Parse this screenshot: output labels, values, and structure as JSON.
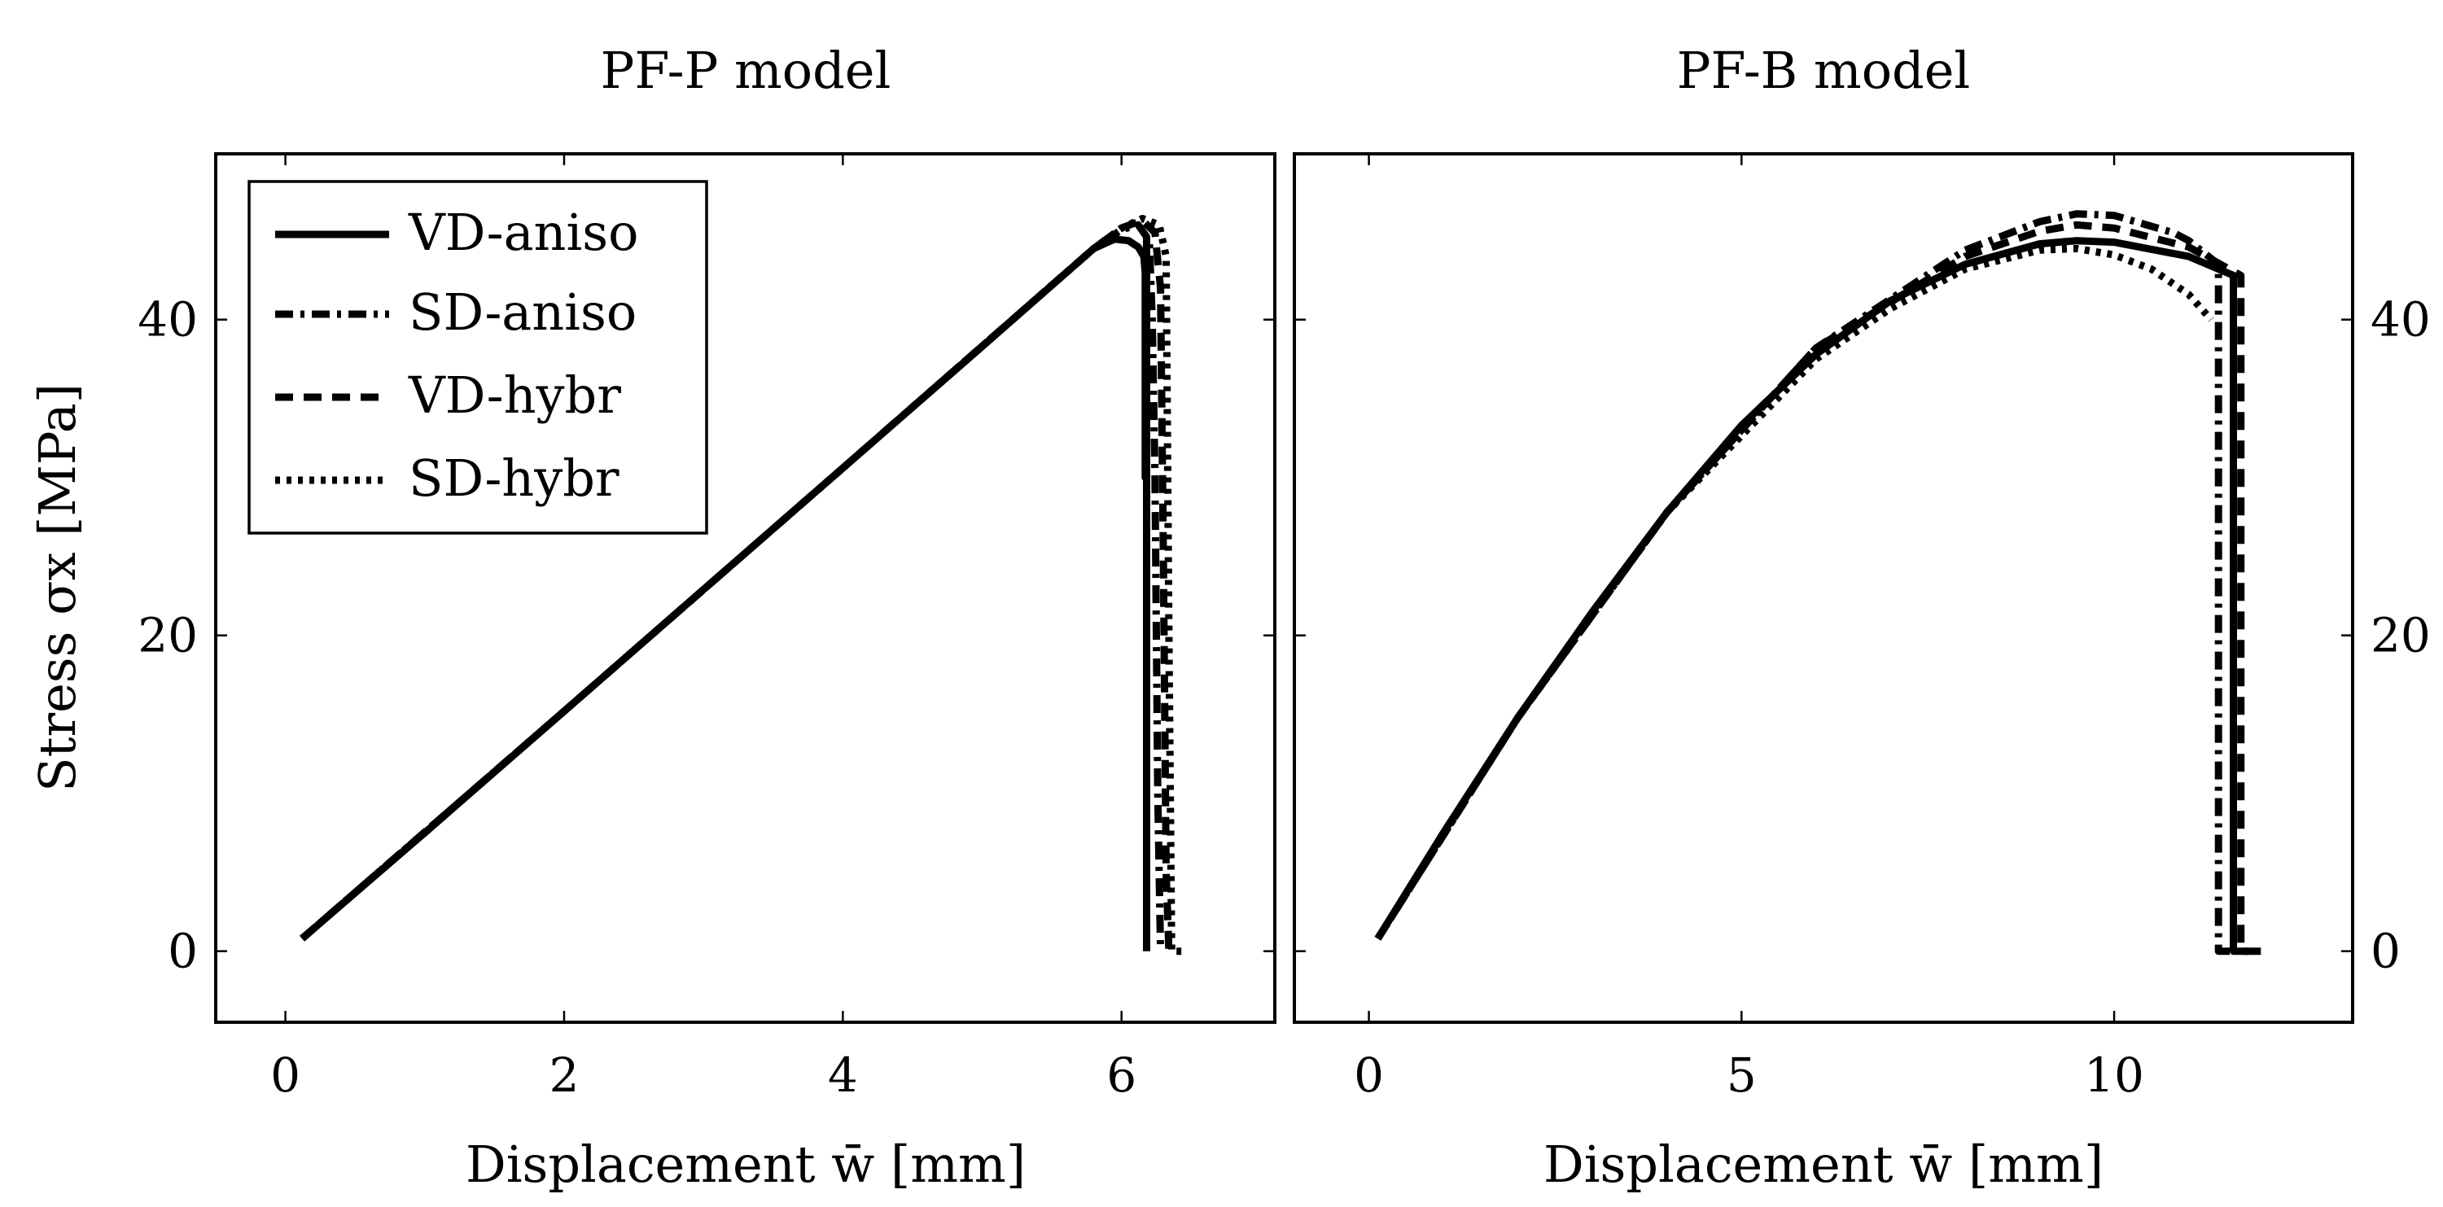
{
  "chart_data": [
    {
      "type": "line",
      "title": "PF-P model",
      "xlabel": "Displacement w̄ [mm]",
      "ylabel": "Stress σx [MPa]",
      "xlim": [
        -0.5,
        7.1
      ],
      "ylim": [
        -4.5,
        50.5
      ],
      "xticks": [
        0,
        2,
        4,
        6
      ],
      "yticks": [
        0,
        20,
        40
      ],
      "ytick_side": "left",
      "legend": {
        "placement": "top-left",
        "entries": [
          "VD-aniso",
          "SD-aniso",
          "VD-hybr",
          "SD-hybr"
        ]
      },
      "series": [
        {
          "name": "VD-aniso",
          "style": "solid",
          "x": [
            0.12,
            1.0,
            2.0,
            3.0,
            4.0,
            5.0,
            5.8,
            5.95,
            6.05,
            6.12,
            6.16,
            6.17,
            6.17,
            6.18,
            6.18
          ],
          "y": [
            0.8,
            7.5,
            15.2,
            22.9,
            30.6,
            38.3,
            44.5,
            45.1,
            45.0,
            44.6,
            44.0,
            43.0,
            30.0,
            45.2,
            0.0
          ]
        },
        {
          "name": "SD-aniso",
          "style": "dashdot",
          "x": [
            0.12,
            2.0,
            4.0,
            5.8,
            6.0,
            6.12,
            6.2,
            6.22,
            6.24,
            6.26,
            6.28,
            6.28
          ],
          "y": [
            0.8,
            15.2,
            30.6,
            44.5,
            45.7,
            46.0,
            45.0,
            40.0,
            30.0,
            10.0,
            0.0,
            0.0
          ]
        },
        {
          "name": "VD-hybr",
          "style": "dashed",
          "x": [
            0.12,
            2.0,
            4.0,
            5.8,
            6.0,
            6.15,
            6.24,
            6.28,
            6.3,
            6.32,
            6.34
          ],
          "y": [
            0.8,
            15.2,
            30.6,
            44.5,
            45.8,
            46.3,
            45.5,
            42.0,
            25.0,
            5.0,
            0.0
          ]
        },
        {
          "name": "SD-hybr",
          "style": "dotted",
          "x": [
            0.12,
            2.0,
            4.0,
            5.8,
            6.0,
            6.15,
            6.27,
            6.32,
            6.34,
            6.36,
            6.45
          ],
          "y": [
            0.8,
            15.2,
            30.6,
            44.5,
            45.8,
            46.4,
            46.0,
            44.0,
            20.0,
            0.0,
            0.0
          ]
        }
      ]
    },
    {
      "type": "line",
      "title": "PF-B model",
      "xlabel": "Displacement w̄ [mm]",
      "ylabel": "",
      "xlim": [
        -1.0,
        13.2
      ],
      "ylim": [
        -4.5,
        50.5
      ],
      "xticks": [
        0,
        5,
        10
      ],
      "yticks": [
        0,
        20,
        40
      ],
      "ytick_side": "right",
      "series": [
        {
          "name": "VD-aniso",
          "style": "solid",
          "x": [
            0.12,
            1.0,
            2.0,
            3.0,
            4.0,
            5.0,
            6.0,
            7.0,
            8.0,
            9.0,
            9.5,
            10.0,
            11.0,
            11.6,
            11.6,
            11.6,
            11.8
          ],
          "y": [
            0.8,
            7.5,
            14.8,
            21.5,
            27.8,
            33.3,
            37.8,
            41.2,
            43.5,
            44.8,
            45.0,
            44.9,
            44.0,
            42.8,
            30.0,
            0.0,
            0.0
          ]
        },
        {
          "name": "SD-aniso",
          "style": "dashdot",
          "x": [
            0.12,
            2.0,
            4.0,
            6.0,
            8.0,
            9.0,
            9.5,
            10.0,
            10.8,
            11.0,
            11.4,
            11.4,
            11.4,
            11.6
          ],
          "y": [
            0.8,
            14.8,
            27.8,
            38.2,
            44.4,
            46.2,
            46.7,
            46.6,
            45.5,
            45.0,
            43.5,
            30.0,
            0.0,
            0.0
          ]
        },
        {
          "name": "VD-hybr",
          "style": "dashed",
          "x": [
            0.12,
            2.0,
            4.0,
            6.0,
            8.0,
            9.0,
            9.5,
            10.0,
            11.0,
            11.7,
            11.7,
            11.7,
            12.0
          ],
          "y": [
            0.8,
            14.8,
            27.8,
            38.2,
            44.0,
            45.6,
            46.0,
            45.8,
            44.6,
            42.8,
            30.0,
            0.0,
            0.0
          ]
        },
        {
          "name": "SD-hybr",
          "style": "dotted",
          "x": [
            0.12,
            2.0,
            4.0,
            6.0,
            7.0,
            8.0,
            9.0,
            9.5,
            10.0,
            10.5,
            11.0,
            11.3
          ],
          "y": [
            0.8,
            14.8,
            27.8,
            37.5,
            40.7,
            43.2,
            44.4,
            44.5,
            44.1,
            43.2,
            41.6,
            40.0
          ]
        }
      ]
    }
  ]
}
